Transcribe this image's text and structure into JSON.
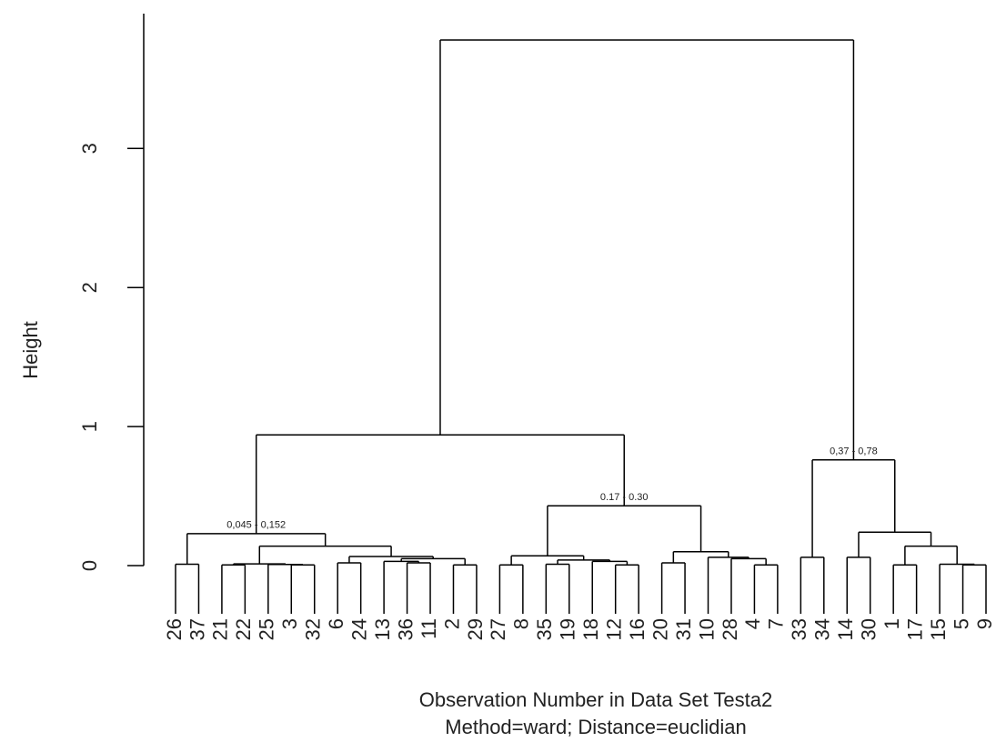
{
  "chart_data": {
    "type": "dendrogram",
    "y_label": "Height",
    "x_label": "Observation Number in Data Set Testa2",
    "subtitle": "Method=ward; Distance=euclidian",
    "ylim": [
      0,
      3.97
    ],
    "yticks": [
      0,
      1,
      2,
      3
    ],
    "tree": {
      "height": 3.78,
      "children": [
        {
          "height": 0.94,
          "children": [
            {
              "height": 0.23,
              "label": "0,045 - 0,152",
              "children": [
                {
                  "height": 0.01,
                  "children": [
                    {
                      "label": "26"
                    },
                    {
                      "label": "37"
                    }
                  ]
                },
                {
                  "height": 0.14,
                  "children": [
                    {
                      "height": 0.012,
                      "children": [
                        {
                          "height": 0.005,
                          "children": [
                            {
                              "label": "21"
                            },
                            {
                              "label": "22"
                            }
                          ]
                        },
                        {
                          "height": 0.008,
                          "children": [
                            {
                              "label": "25"
                            },
                            {
                              "height": 0.005,
                              "children": [
                                {
                                  "label": "3"
                                },
                                {
                                  "label": "32"
                                }
                              ]
                            }
                          ]
                        }
                      ]
                    },
                    {
                      "height": 0.065,
                      "children": [
                        {
                          "height": 0.02,
                          "children": [
                            {
                              "label": "6"
                            },
                            {
                              "label": "24"
                            }
                          ]
                        },
                        {
                          "height": 0.05,
                          "children": [
                            {
                              "height": 0.03,
                              "children": [
                                {
                                  "label": "13"
                                },
                                {
                                  "height": 0.02,
                                  "children": [
                                    {
                                      "label": "36"
                                    },
                                    {
                                      "label": "11"
                                    }
                                  ]
                                }
                              ]
                            },
                            {
                              "height": 0.005,
                              "children": [
                                {
                                  "label": "2"
                                },
                                {
                                  "label": "29"
                                }
                              ]
                            }
                          ]
                        }
                      ]
                    }
                  ]
                }
              ]
            },
            {
              "height": 0.43,
              "label": "0.17 - 0.30",
              "children": [
                {
                  "height": 0.07,
                  "children": [
                    {
                      "height": 0.005,
                      "children": [
                        {
                          "label": "27"
                        },
                        {
                          "label": "8"
                        }
                      ]
                    },
                    {
                      "height": 0.04,
                      "children": [
                        {
                          "height": 0.01,
                          "children": [
                            {
                              "label": "35"
                            },
                            {
                              "label": "19"
                            }
                          ]
                        },
                        {
                          "height": 0.03,
                          "children": [
                            {
                              "label": "18"
                            },
                            {
                              "height": 0.005,
                              "children": [
                                {
                                  "label": "12"
                                },
                                {
                                  "label": "16"
                                }
                              ]
                            }
                          ]
                        }
                      ]
                    }
                  ]
                },
                {
                  "height": 0.1,
                  "children": [
                    {
                      "height": 0.02,
                      "children": [
                        {
                          "label": "20"
                        },
                        {
                          "label": "31"
                        }
                      ]
                    },
                    {
                      "height": 0.06,
                      "children": [
                        {
                          "label": "10"
                        },
                        {
                          "height": 0.05,
                          "children": [
                            {
                              "label": "28"
                            },
                            {
                              "height": 0.005,
                              "children": [
                                {
                                  "label": "4"
                                },
                                {
                                  "label": "7"
                                }
                              ]
                            }
                          ]
                        }
                      ]
                    }
                  ]
                }
              ]
            }
          ]
        },
        {
          "height": 0.76,
          "label": "0,37 - 0,78",
          "children": [
            {
              "height": 0.06,
              "children": [
                {
                  "label": "33"
                },
                {
                  "label": "34"
                }
              ]
            },
            {
              "height": 0.24,
              "children": [
                {
                  "height": 0.06,
                  "children": [
                    {
                      "label": "14"
                    },
                    {
                      "label": "30"
                    }
                  ]
                },
                {
                  "height": 0.14,
                  "children": [
                    {
                      "height": 0.005,
                      "children": [
                        {
                          "label": "1"
                        },
                        {
                          "label": "17"
                        }
                      ]
                    },
                    {
                      "height": 0.01,
                      "children": [
                        {
                          "label": "15"
                        },
                        {
                          "height": 0.005,
                          "children": [
                            {
                              "label": "5"
                            },
                            {
                              "label": "9"
                            }
                          ]
                        }
                      ]
                    }
                  ]
                }
              ]
            }
          ]
        }
      ]
    }
  }
}
